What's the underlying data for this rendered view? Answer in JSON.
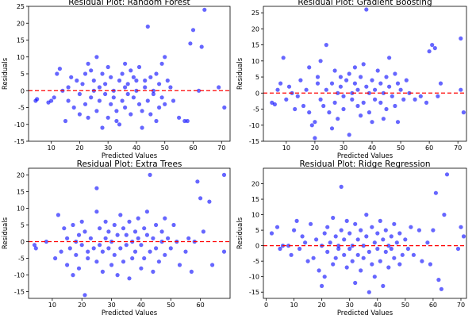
{
  "chart_data": [
    {
      "type": "scatter",
      "title": "Residual Plot: Random Forest",
      "xlabel": "Predicted Values",
      "ylabel": "Residuals",
      "xlim": [
        2,
        73
      ],
      "ylim": [
        -15,
        25
      ],
      "xticks": [
        10,
        20,
        30,
        40,
        50,
        60,
        70
      ],
      "yticks": [
        -15,
        -10,
        -5,
        0,
        5,
        10,
        15,
        20,
        25
      ],
      "zero_line": 0,
      "points": [
        [
          4.5,
          -3
        ],
        [
          5,
          -2.5
        ],
        [
          9,
          -3.5
        ],
        [
          10,
          -3
        ],
        [
          11,
          -2
        ],
        [
          12,
          5
        ],
        [
          13,
          6.5
        ],
        [
          14,
          0
        ],
        [
          15,
          -9
        ],
        [
          16,
          -3
        ],
        [
          16,
          1
        ],
        [
          17,
          4
        ],
        [
          18,
          -5
        ],
        [
          19,
          3
        ],
        [
          20,
          -1
        ],
        [
          20,
          -7
        ],
        [
          21,
          2
        ],
        [
          22,
          5
        ],
        [
          22,
          -4
        ],
        [
          23,
          8
        ],
        [
          23,
          -8
        ],
        [
          24,
          -2
        ],
        [
          24,
          6
        ],
        [
          25,
          0
        ],
        [
          25,
          3
        ],
        [
          26,
          10
        ],
        [
          26,
          -6
        ],
        [
          27,
          -3
        ],
        [
          27,
          1
        ],
        [
          28,
          5
        ],
        [
          28,
          -11
        ],
        [
          29,
          2
        ],
        [
          29,
          -1
        ],
        [
          30,
          7
        ],
        [
          30,
          -8
        ],
        [
          31,
          4
        ],
        [
          31,
          -4
        ],
        [
          32,
          0
        ],
        [
          32,
          -2
        ],
        [
          33,
          -6
        ],
        [
          33,
          -9
        ],
        [
          34,
          -10
        ],
        [
          34,
          3
        ],
        [
          35,
          5
        ],
        [
          35,
          -3
        ],
        [
          36,
          1
        ],
        [
          36,
          -5
        ],
        [
          36,
          8
        ],
        [
          37,
          2
        ],
        [
          37,
          -1
        ],
        [
          38,
          6
        ],
        [
          38,
          -7
        ],
        [
          39,
          4
        ],
        [
          39,
          -2
        ],
        [
          40,
          0
        ],
        [
          40,
          3
        ],
        [
          41,
          -4
        ],
        [
          41,
          7
        ],
        [
          42,
          -11
        ],
        [
          42,
          -6
        ],
        [
          43,
          1
        ],
        [
          43,
          3
        ],
        [
          44,
          -3
        ],
        [
          44,
          19
        ],
        [
          45,
          4
        ],
        [
          45,
          -7
        ],
        [
          46,
          0
        ],
        [
          46,
          -1
        ],
        [
          47,
          5
        ],
        [
          47,
          -9
        ],
        [
          48,
          2
        ],
        [
          48,
          -5
        ],
        [
          49,
          8
        ],
        [
          49,
          -2
        ],
        [
          50,
          10
        ],
        [
          50,
          -4
        ],
        [
          51,
          3
        ],
        [
          52,
          1
        ],
        [
          53,
          -3
        ],
        [
          55,
          -8
        ],
        [
          57,
          -9
        ],
        [
          58,
          -9
        ],
        [
          59,
          14
        ],
        [
          60,
          18
        ],
        [
          62,
          0
        ],
        [
          63,
          13
        ],
        [
          64,
          24
        ],
        [
          69,
          1
        ],
        [
          71,
          -5
        ]
      ]
    },
    {
      "type": "scatter",
      "title": "Residual Plot: Gradient Boosting",
      "xlabel": "Predicted Values",
      "ylabel": "Residuals",
      "xlim": [
        2,
        73
      ],
      "ylim": [
        -15,
        27
      ],
      "xticks": [
        10,
        20,
        30,
        40,
        50,
        60,
        70
      ],
      "yticks": [
        -15,
        -10,
        -5,
        0,
        5,
        10,
        15,
        20,
        25
      ],
      "zero_line": 0,
      "points": [
        [
          5,
          -3
        ],
        [
          6,
          -3.5
        ],
        [
          7,
          1
        ],
        [
          8,
          3
        ],
        [
          9,
          11
        ],
        [
          10,
          -2
        ],
        [
          11,
          2
        ],
        [
          12,
          0
        ],
        [
          13,
          -5
        ],
        [
          14,
          -1
        ],
        [
          15,
          4
        ],
        [
          16,
          -4
        ],
        [
          17,
          1
        ],
        [
          18,
          8
        ],
        [
          18,
          -6
        ],
        [
          19,
          -10
        ],
        [
          20,
          -9
        ],
        [
          20,
          -14
        ],
        [
          21,
          3
        ],
        [
          21,
          5
        ],
        [
          22,
          -2
        ],
        [
          22,
          10
        ],
        [
          23,
          -4
        ],
        [
          24,
          1
        ],
        [
          24,
          15
        ],
        [
          25,
          -6
        ],
        [
          26,
          3
        ],
        [
          26,
          -11
        ],
        [
          27,
          7
        ],
        [
          27,
          -3
        ],
        [
          28,
          0
        ],
        [
          28,
          -8
        ],
        [
          29,
          2
        ],
        [
          29,
          5
        ],
        [
          30,
          -1
        ],
        [
          30,
          -5
        ],
        [
          31,
          4
        ],
        [
          32,
          -13
        ],
        [
          32,
          6
        ],
        [
          33,
          0
        ],
        [
          33,
          -2
        ],
        [
          34,
          3
        ],
        [
          34,
          8
        ],
        [
          35,
          -4
        ],
        [
          35,
          1
        ],
        [
          36,
          5
        ],
        [
          36,
          -7
        ],
        [
          37,
          9
        ],
        [
          37,
          -3
        ],
        [
          38,
          26
        ],
        [
          38,
          2
        ],
        [
          39,
          -6
        ],
        [
          39,
          0
        ],
        [
          40,
          4
        ],
        [
          40,
          -9
        ],
        [
          41,
          1
        ],
        [
          41,
          -2
        ],
        [
          42,
          7
        ],
        [
          43,
          -3
        ],
        [
          43,
          3
        ],
        [
          44,
          0
        ],
        [
          44,
          -8
        ],
        [
          45,
          5
        ],
        [
          45,
          -5
        ],
        [
          46,
          2
        ],
        [
          46,
          11
        ],
        [
          47,
          -1
        ],
        [
          48,
          -4
        ],
        [
          48,
          6
        ],
        [
          49,
          -9
        ],
        [
          49,
          3
        ],
        [
          50,
          1
        ],
        [
          51,
          -2
        ],
        [
          52,
          4
        ],
        [
          53,
          0
        ],
        [
          55,
          -2
        ],
        [
          57,
          -1
        ],
        [
          59,
          -3
        ],
        [
          60,
          13
        ],
        [
          61,
          15
        ],
        [
          62,
          14
        ],
        [
          63,
          -1
        ],
        [
          64,
          3
        ],
        [
          71,
          1
        ],
        [
          71,
          17
        ],
        [
          72,
          -6
        ]
      ]
    },
    {
      "type": "scatter",
      "title": "Residual Plot: Extra Trees",
      "xlabel": "Predicted Values",
      "ylabel": "Residuals",
      "xlim": [
        2,
        70
      ],
      "ylim": [
        -17,
        22
      ],
      "xticks": [
        10,
        20,
        30,
        40,
        50,
        60
      ],
      "yticks": [
        -15,
        -10,
        -5,
        0,
        5,
        10,
        15,
        20
      ],
      "zero_line": 0,
      "points": [
        [
          4,
          -1
        ],
        [
          4.5,
          -2
        ],
        [
          8,
          0
        ],
        [
          11,
          -5
        ],
        [
          12,
          8
        ],
        [
          13,
          -3
        ],
        [
          14,
          4
        ],
        [
          15,
          1
        ],
        [
          15,
          -7
        ],
        [
          16,
          -2
        ],
        [
          17,
          5
        ],
        [
          17,
          -10
        ],
        [
          18,
          0
        ],
        [
          18,
          -4
        ],
        [
          19,
          2
        ],
        [
          19,
          -8
        ],
        [
          20,
          -1
        ],
        [
          20,
          6
        ],
        [
          21,
          -16
        ],
        [
          21,
          3
        ],
        [
          22,
          -5
        ],
        [
          22,
          -3
        ],
        [
          23,
          1
        ],
        [
          24,
          -2
        ],
        [
          25,
          16
        ],
        [
          25,
          -6
        ],
        [
          25,
          9
        ],
        [
          26,
          4
        ],
        [
          26,
          -1
        ],
        [
          27,
          -3
        ],
        [
          27,
          -9
        ],
        [
          28,
          6
        ],
        [
          28,
          1
        ],
        [
          29,
          -2
        ],
        [
          29,
          3
        ],
        [
          30,
          -7
        ],
        [
          30,
          0
        ],
        [
          31,
          5
        ],
        [
          31,
          -4
        ],
        [
          32,
          2
        ],
        [
          32,
          -10
        ],
        [
          33,
          8
        ],
        [
          33,
          -2
        ],
        [
          34,
          4
        ],
        [
          34,
          -6
        ],
        [
          35,
          -1
        ],
        [
          35,
          2
        ],
        [
          36,
          6
        ],
        [
          36,
          -11
        ],
        [
          37,
          0
        ],
        [
          37,
          -5
        ],
        [
          38,
          3
        ],
        [
          38,
          -3
        ],
        [
          39,
          7
        ],
        [
          39,
          1
        ],
        [
          40,
          -8
        ],
        [
          40,
          -1
        ],
        [
          41,
          4
        ],
        [
          41,
          -5
        ],
        [
          42,
          2
        ],
        [
          42,
          9
        ],
        [
          43,
          20
        ],
        [
          43,
          -3
        ],
        [
          44,
          1
        ],
        [
          44,
          -9
        ],
        [
          45,
          5
        ],
        [
          45,
          -2
        ],
        [
          46,
          -6
        ],
        [
          47,
          3
        ],
        [
          47,
          0
        ],
        [
          48,
          7
        ],
        [
          48,
          -4
        ],
        [
          49,
          1
        ],
        [
          50,
          -2
        ],
        [
          51,
          5
        ],
        [
          52,
          0
        ],
        [
          53,
          -7
        ],
        [
          55,
          -3
        ],
        [
          56,
          1
        ],
        [
          57,
          -9
        ],
        [
          58,
          0
        ],
        [
          59,
          18
        ],
        [
          60,
          13
        ],
        [
          61,
          3
        ],
        [
          63,
          12
        ],
        [
          64,
          -7
        ],
        [
          68,
          20
        ],
        [
          68,
          -3
        ]
      ]
    },
    {
      "type": "scatter",
      "title": "Residual Plot: Ridge Regression",
      "xlabel": "Predicted Values",
      "ylabel": "Residuals",
      "xlim": [
        -1,
        72
      ],
      "ylim": [
        -17,
        25
      ],
      "xticks": [
        0,
        10,
        20,
        30,
        40,
        50,
        60,
        70
      ],
      "yticks": [
        -15,
        -10,
        -5,
        0,
        5,
        10,
        15,
        20
      ],
      "zero_line": 0,
      "points": [
        [
          2,
          4
        ],
        [
          4,
          6
        ],
        [
          5,
          -1
        ],
        [
          6,
          0
        ],
        [
          8,
          0
        ],
        [
          9,
          -3
        ],
        [
          10,
          5
        ],
        [
          11,
          8
        ],
        [
          12,
          -1
        ],
        [
          13,
          3
        ],
        [
          14,
          1
        ],
        [
          15,
          -5
        ],
        [
          16,
          7
        ],
        [
          17,
          -4
        ],
        [
          18,
          2
        ],
        [
          19,
          -8
        ],
        [
          20,
          0
        ],
        [
          20,
          -13
        ],
        [
          21,
          4
        ],
        [
          21,
          -10
        ],
        [
          22,
          -2
        ],
        [
          22,
          6
        ],
        [
          23,
          1
        ],
        [
          24,
          -6
        ],
        [
          24,
          9
        ],
        [
          25,
          3
        ],
        [
          25,
          -4
        ],
        [
          26,
          0
        ],
        [
          26,
          -1
        ],
        [
          27,
          19
        ],
        [
          27,
          5
        ],
        [
          28,
          -3
        ],
        [
          28,
          2
        ],
        [
          29,
          -7
        ],
        [
          29,
          8
        ],
        [
          30,
          -1
        ],
        [
          30,
          4
        ],
        [
          31,
          -5
        ],
        [
          31,
          0
        ],
        [
          32,
          7
        ],
        [
          32,
          -12
        ],
        [
          33,
          -3
        ],
        [
          33,
          2
        ],
        [
          34,
          -8
        ],
        [
          34,
          5
        ],
        [
          35,
          0
        ],
        [
          35,
          -4
        ],
        [
          36,
          10
        ],
        [
          36,
          3
        ],
        [
          37,
          -2
        ],
        [
          37,
          -15
        ],
        [
          38,
          6
        ],
        [
          38,
          -6
        ],
        [
          39,
          1
        ],
        [
          39,
          -10
        ],
        [
          40,
          4
        ],
        [
          40,
          -1
        ],
        [
          41,
          8
        ],
        [
          41,
          -5
        ],
        [
          42,
          2
        ],
        [
          42,
          -13
        ],
        [
          43,
          -2
        ],
        [
          43,
          5
        ],
        [
          44,
          0
        ],
        [
          44,
          -7
        ],
        [
          45,
          3
        ],
        [
          45,
          -1
        ],
        [
          46,
          7
        ],
        [
          46,
          -4
        ],
        [
          47,
          1
        ],
        [
          48,
          -6
        ],
        [
          48,
          4
        ],
        [
          49,
          -3
        ],
        [
          50,
          2
        ],
        [
          51,
          -1
        ],
        [
          52,
          6
        ],
        [
          53,
          -3
        ],
        [
          55,
          5
        ],
        [
          56,
          -5
        ],
        [
          58,
          1
        ],
        [
          59,
          -6
        ],
        [
          60,
          5
        ],
        [
          61,
          17
        ],
        [
          62,
          -11
        ],
        [
          63,
          -14
        ],
        [
          64,
          10
        ],
        [
          65,
          23
        ],
        [
          69,
          -1
        ],
        [
          70,
          6
        ],
        [
          71,
          3
        ]
      ]
    }
  ]
}
